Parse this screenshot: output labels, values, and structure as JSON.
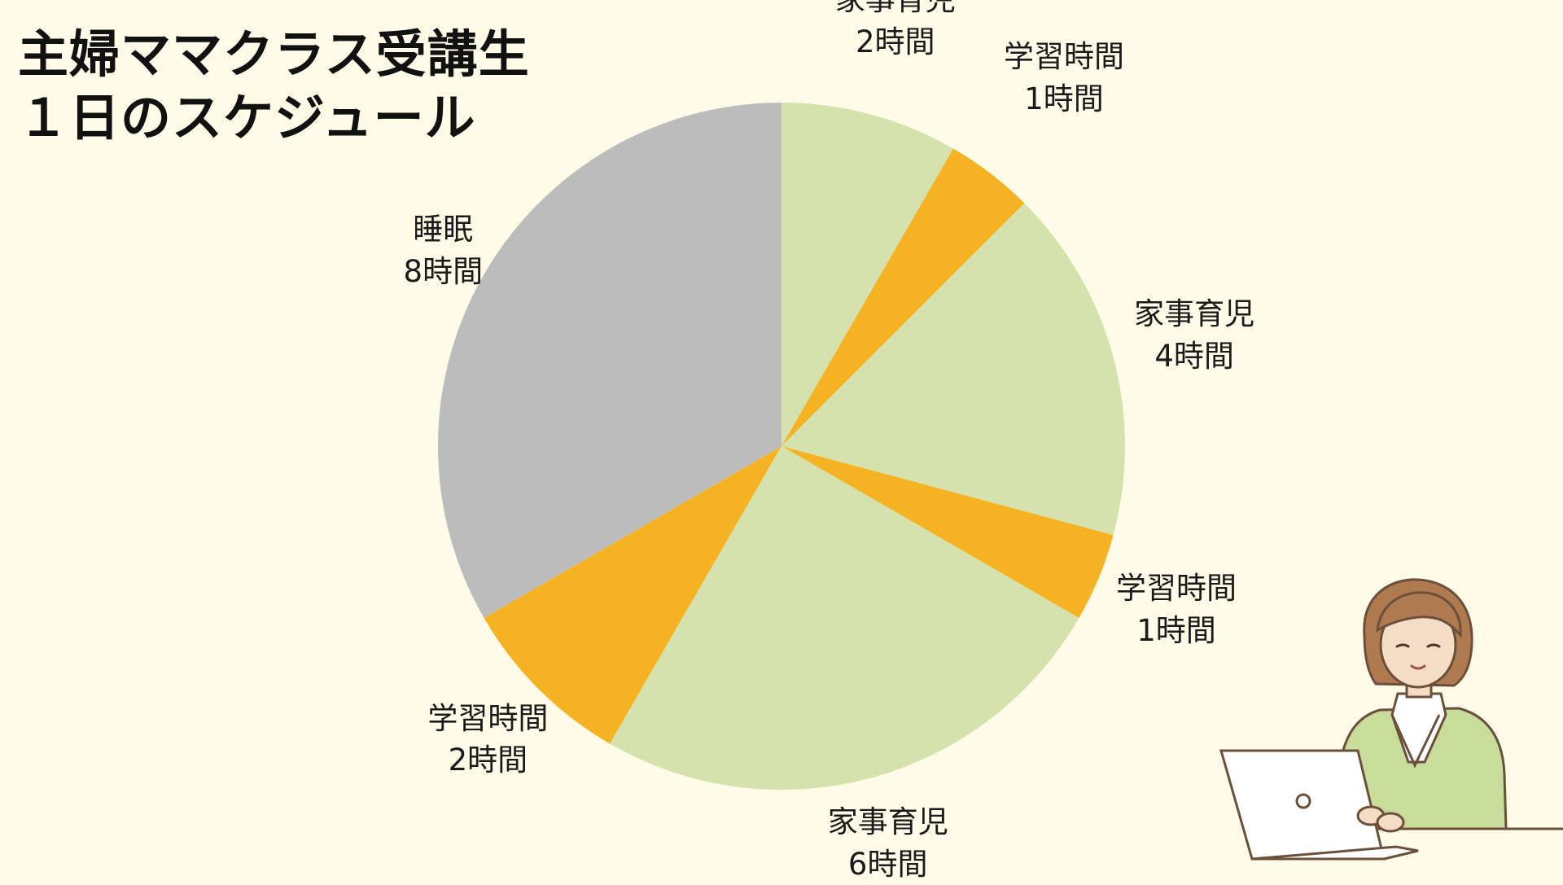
{
  "title": {
    "line1": "主婦ママクラス受講生",
    "line2": "１日のスケジュール"
  },
  "colors": {
    "background": "#fefce8",
    "家事育児": "#d5e2ae",
    "学習時間": "#f5b323",
    "睡眠": "#bcbcbc"
  },
  "chart_data": {
    "type": "pie",
    "title": "主婦ママクラス受講生 １日のスケジュール",
    "start": "12 o'clock",
    "direction": "clockwise",
    "total_hours": 24,
    "slices": [
      {
        "category": "家事育児",
        "hours": 2,
        "label_name": "家事育児",
        "label_value": "2時間",
        "color": "#d5e2ae"
      },
      {
        "category": "学習時間",
        "hours": 1,
        "label_name": "学習時間",
        "label_value": "1時間",
        "color": "#f5b323"
      },
      {
        "category": "家事育児",
        "hours": 4,
        "label_name": "家事育児",
        "label_value": "4時間",
        "color": "#d5e2ae"
      },
      {
        "category": "学習時間",
        "hours": 1,
        "label_name": "学習時間",
        "label_value": "1時間",
        "color": "#f5b323"
      },
      {
        "category": "家事育児",
        "hours": 6,
        "label_name": "家事育児",
        "label_value": "6時間",
        "color": "#d5e2ae"
      },
      {
        "category": "学習時間",
        "hours": 2,
        "label_name": "学習時間",
        "label_value": "2時間",
        "color": "#f5b323"
      },
      {
        "category": "睡眠",
        "hours": 8,
        "label_name": "睡眠",
        "label_value": "8時間",
        "color": "#bcbcbc"
      }
    ]
  }
}
